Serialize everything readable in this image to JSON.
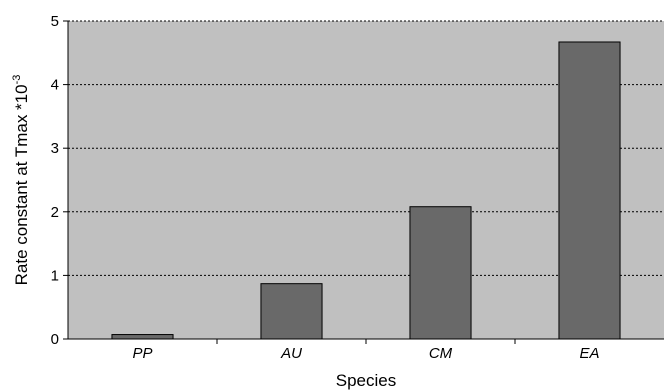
{
  "chart_data": {
    "type": "bar",
    "title": "",
    "xlabel": "Species",
    "ylabel": "Rate constant at Tmax *10",
    "ylabel_superscript": "-3",
    "categories": [
      "PP",
      "AU",
      "CM",
      "EA"
    ],
    "values": [
      0.07,
      0.87,
      2.08,
      4.67
    ],
    "ylim": [
      0,
      5
    ],
    "yticks": [
      0,
      1,
      2,
      3,
      4,
      5
    ],
    "grid": "horizontal dashed",
    "legend": "none",
    "colors": {
      "plot_background": "#c0c0c0",
      "bar_fill": "#696969",
      "bar_stroke": "#000000",
      "grid": "#000000"
    }
  }
}
